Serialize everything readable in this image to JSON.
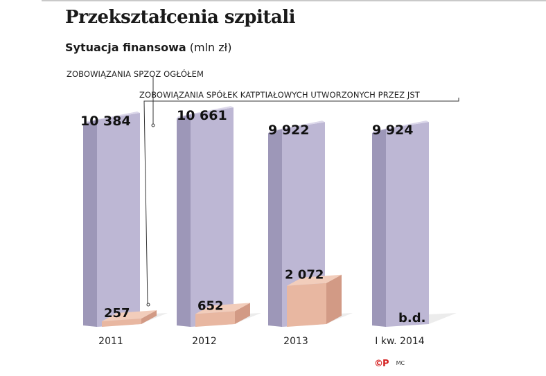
{
  "header": {
    "title": "Przekształcenia szpitali",
    "subtitle_bold": "Sytuacja finansowa",
    "subtitle_unit": "(mln zł)"
  },
  "legend": {
    "series1": "ZOBOWIĄZANIA SPZOZ OGŁÓŁEM",
    "series2": "ZOBOWIĄZANIA SPÓŁEK KATPTIAŁOWYCH UTWORZONYCH PRZEZ JST"
  },
  "footer": {
    "logo": "©P",
    "credit": "MC"
  },
  "colors": {
    "tall_front": "#bdb7d4",
    "tall_side": "#9d97b8",
    "tall_top": "#dcd8ea",
    "short_front": "#e8b7a1",
    "short_side": "#d29a85",
    "short_top": "#f2cdbb",
    "shadow": "#e4e4e4"
  },
  "chart_data": {
    "type": "bar",
    "categories": [
      "2011",
      "2012",
      "2013",
      "I kw. 2014"
    ],
    "series": [
      {
        "name": "ZOBOWIĄZANIA SPZOZ OGŁÓŁEM",
        "values": [
          10384,
          10661,
          9922,
          9924
        ],
        "labels": [
          "10 384",
          "10 661",
          "9 922",
          "9 924"
        ]
      },
      {
        "name": "ZOBOWIĄZANIA SPÓŁEK KATPTIAŁOWYCH UTWORZONYCH PRZEZ JST",
        "values": [
          257,
          652,
          2072,
          null
        ],
        "labels": [
          "257",
          "652",
          "2 072",
          "b.d."
        ]
      }
    ],
    "title": "Przekształcenia szpitali",
    "subtitle": "Sytuacja finansowa (mln zł)",
    "xlabel": "",
    "ylabel": "",
    "grid": false
  }
}
